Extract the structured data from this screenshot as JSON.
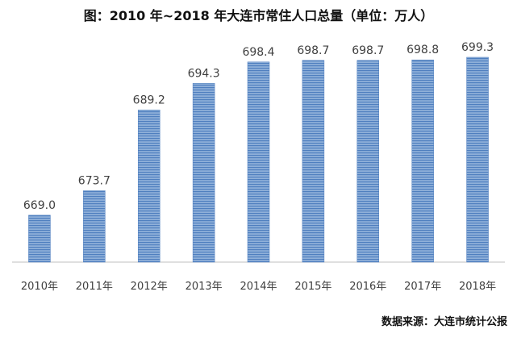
{
  "chart_data": {
    "type": "bar",
    "title": "图：2010 年~2018 年大连市常住人口总量（单位：万人）",
    "categories": [
      "2010年",
      "2011年",
      "2012年",
      "2013年",
      "2014年",
      "2015年",
      "2016年",
      "2017年",
      "2018年"
    ],
    "values": [
      669.0,
      673.7,
      689.2,
      694.3,
      698.4,
      698.7,
      698.7,
      698.8,
      699.3
    ],
    "value_labels": [
      "669.0",
      "673.7",
      "689.2",
      "694.3",
      "698.4",
      "698.7",
      "698.7",
      "698.8",
      "699.3"
    ],
    "ylim": [
      660,
      701
    ],
    "grid": false,
    "legend": "none",
    "colors": {
      "bar_fill": "#8fb0d9",
      "bar_stripe": "#4f7fbf",
      "axis": "#bfbfbf",
      "label": "#404040"
    }
  },
  "source_note": "数据来源：大连市统计公报"
}
